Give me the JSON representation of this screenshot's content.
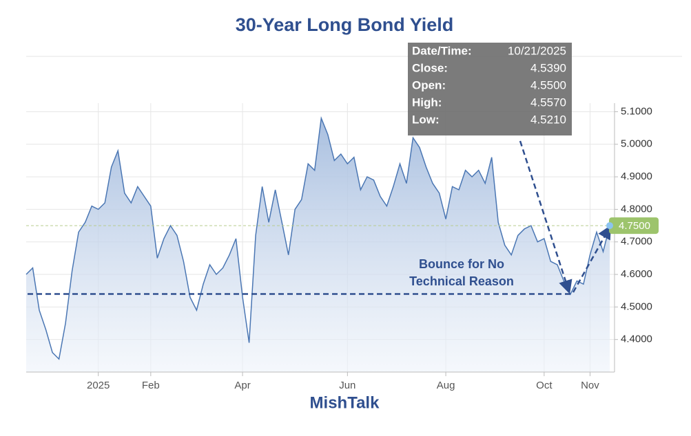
{
  "chart_data": {
    "type": "line",
    "title": "30-Year Long Bond Yield",
    "categories": [
      null,
      null,
      null,
      null,
      null,
      null,
      null,
      null,
      null,
      null,
      null,
      "2025",
      null,
      null,
      null,
      null,
      null,
      null,
      null,
      "Feb",
      null,
      null,
      null,
      null,
      null,
      null,
      null,
      null,
      null,
      null,
      null,
      null,
      null,
      "Apr",
      null,
      null,
      null,
      null,
      null,
      null,
      null,
      null,
      null,
      null,
      null,
      null,
      null,
      null,
      null,
      "Jun",
      null,
      null,
      null,
      null,
      null,
      null,
      null,
      null,
      null,
      null,
      null,
      null,
      null,
      null,
      "Aug",
      null,
      null,
      null,
      null,
      null,
      null,
      null,
      null,
      null,
      null,
      null,
      null,
      null,
      null,
      "Oct",
      null,
      null,
      null,
      null,
      null,
      null,
      "Nov",
      null,
      null,
      null
    ],
    "values": [
      4.6,
      4.62,
      4.49,
      4.43,
      4.36,
      4.34,
      4.45,
      4.61,
      4.73,
      4.76,
      4.81,
      4.8,
      4.82,
      4.93,
      4.98,
      4.85,
      4.82,
      4.87,
      4.84,
      4.81,
      4.65,
      4.71,
      4.75,
      4.72,
      4.64,
      4.53,
      4.49,
      4.57,
      4.63,
      4.6,
      4.62,
      4.66,
      4.71,
      4.53,
      4.39,
      4.72,
      4.87,
      4.76,
      4.86,
      4.76,
      4.66,
      4.8,
      4.83,
      4.94,
      4.92,
      5.08,
      5.03,
      4.95,
      4.97,
      4.94,
      4.96,
      4.86,
      4.9,
      4.89,
      4.84,
      4.81,
      4.87,
      4.94,
      4.88,
      5.02,
      4.99,
      4.93,
      4.88,
      4.85,
      4.77,
      4.87,
      4.86,
      4.92,
      4.9,
      4.92,
      4.88,
      4.96,
      4.76,
      4.69,
      4.66,
      4.72,
      4.74,
      4.75,
      4.7,
      4.71,
      4.64,
      4.63,
      4.58,
      4.539,
      4.58,
      4.57,
      4.66,
      4.73,
      4.67,
      4.75
    ],
    "color": "#4a76b3",
    "ylim": [
      4.3,
      5.12
    ],
    "yticks": [
      {
        "value": 4.4,
        "label": "4.4000"
      },
      {
        "value": 4.5,
        "label": "4.5000"
      },
      {
        "value": 4.6,
        "label": "4.6000"
      },
      {
        "value": 4.7,
        "label": "4.7000"
      },
      {
        "value": 4.8,
        "label": "4.8000"
      },
      {
        "value": 4.9,
        "label": "4.9000"
      },
      {
        "value": 5.0,
        "label": "5.0000"
      },
      {
        "value": 5.1,
        "label": "5.1000"
      }
    ],
    "grid": true,
    "last_value": {
      "value": 4.75,
      "label": "4.7500"
    },
    "annotation": {
      "lines": [
        "Bounce for No",
        "Technical Reason"
      ],
      "level": 4.54
    },
    "tooltip": [
      {
        "label": "Date/Time:",
        "value": "10/21/2025"
      },
      {
        "label": "Close:",
        "value": "4.5390"
      },
      {
        "label": "Open:",
        "value": "4.5500"
      },
      {
        "label": "High:",
        "value": "4.5570"
      },
      {
        "label": "Low:",
        "value": "4.5210"
      }
    ],
    "footer": "MishTalk"
  }
}
